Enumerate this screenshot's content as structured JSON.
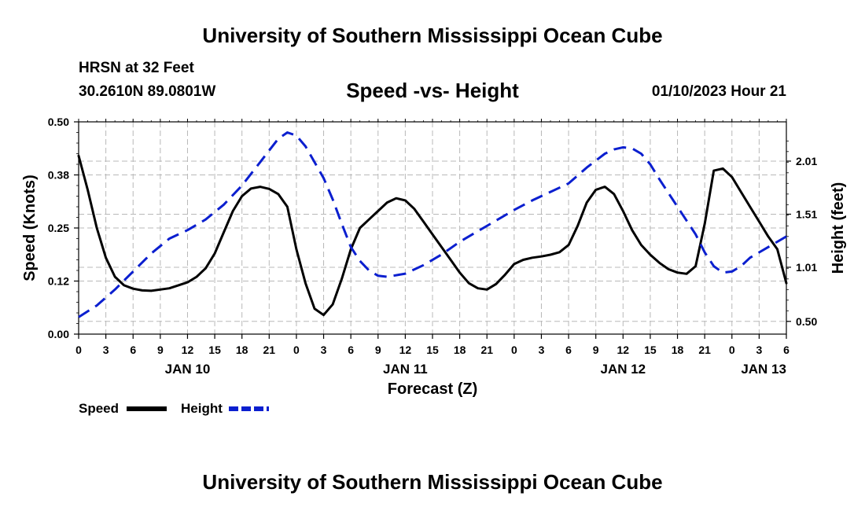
{
  "header": {
    "title_top": "University of Southern Mississippi Ocean Cube",
    "station": "HRSN at 32 Feet",
    "coords": "30.2610N  89.0801W",
    "subtitle": "Speed -vs- Height",
    "datetime": "01/10/2023 Hour 21",
    "title_bottom": "University of Southern Mississippi Ocean Cube"
  },
  "chart_data": {
    "type": "line",
    "title": "Speed -vs- Height",
    "xlabel": "Forecast (Z)",
    "ylabel": "Speed (Knots)",
    "y2label": "Height (feet)",
    "xlim": [
      0,
      78
    ],
    "ylim": [
      0,
      0.5
    ],
    "y2lim": [
      0.38,
      2.38
    ],
    "x_tick_positions": [
      0,
      3,
      6,
      9,
      12,
      15,
      18,
      21,
      24,
      27,
      30,
      33,
      36,
      39,
      42,
      45,
      48,
      51,
      54,
      57,
      60,
      63,
      66,
      69,
      72,
      75,
      78
    ],
    "x_tick_labels": [
      "0",
      "3",
      "6",
      "9",
      "12",
      "15",
      "18",
      "21",
      "0",
      "3",
      "6",
      "9",
      "12",
      "15",
      "18",
      "21",
      "0",
      "3",
      "6",
      "9",
      "12",
      "15",
      "18",
      "21",
      "0",
      "3",
      "6"
    ],
    "date_labels": [
      {
        "x": 12,
        "label": "JAN 10"
      },
      {
        "x": 36,
        "label": "JAN 11"
      },
      {
        "x": 60,
        "label": "JAN 12"
      },
      {
        "x": 75.5,
        "label": "JAN 13"
      }
    ],
    "y_ticks": [
      0.0,
      0.125,
      0.25,
      0.375,
      0.5
    ],
    "y_tick_labels": [
      "0.00",
      "0.12",
      "0.25",
      "0.38",
      "0.50"
    ],
    "y2_ticks": [
      0.5,
      1.01,
      1.51,
      2.01
    ],
    "y2_tick_labels": [
      "0.50",
      "1.01",
      "1.51",
      "2.01"
    ],
    "grid": true,
    "legend": {
      "placement": "bottom-left",
      "entries": [
        "Speed",
        "Height"
      ]
    },
    "series": [
      {
        "name": "Speed",
        "axis": "left",
        "color": "#000000",
        "dash": "solid",
        "points": [
          [
            0,
            0.42
          ],
          [
            1,
            0.34
          ],
          [
            2,
            0.25
          ],
          [
            3,
            0.18
          ],
          [
            4,
            0.135
          ],
          [
            5,
            0.115
          ],
          [
            6,
            0.107
          ],
          [
            7,
            0.103
          ],
          [
            8,
            0.102
          ],
          [
            9,
            0.105
          ],
          [
            10,
            0.108
          ],
          [
            11,
            0.115
          ],
          [
            12,
            0.122
          ],
          [
            13,
            0.135
          ],
          [
            14,
            0.155
          ],
          [
            15,
            0.19
          ],
          [
            16,
            0.24
          ],
          [
            17,
            0.29
          ],
          [
            18,
            0.325
          ],
          [
            19,
            0.343
          ],
          [
            20,
            0.347
          ],
          [
            21,
            0.342
          ],
          [
            22,
            0.33
          ],
          [
            23,
            0.3
          ],
          [
            24,
            0.2
          ],
          [
            25,
            0.12
          ],
          [
            26,
            0.06
          ],
          [
            27,
            0.045
          ],
          [
            28,
            0.07
          ],
          [
            29,
            0.13
          ],
          [
            30,
            0.2
          ],
          [
            31,
            0.25
          ],
          [
            32,
            0.27
          ],
          [
            33,
            0.29
          ],
          [
            34,
            0.31
          ],
          [
            35,
            0.32
          ],
          [
            36,
            0.315
          ],
          [
            37,
            0.295
          ],
          [
            38,
            0.265
          ],
          [
            39,
            0.235
          ],
          [
            40,
            0.205
          ],
          [
            41,
            0.175
          ],
          [
            42,
            0.145
          ],
          [
            43,
            0.12
          ],
          [
            44,
            0.108
          ],
          [
            45,
            0.105
          ],
          [
            46,
            0.118
          ],
          [
            47,
            0.14
          ],
          [
            48,
            0.165
          ],
          [
            49,
            0.175
          ],
          [
            50,
            0.18
          ],
          [
            51,
            0.183
          ],
          [
            52,
            0.187
          ],
          [
            53,
            0.193
          ],
          [
            54,
            0.21
          ],
          [
            55,
            0.255
          ],
          [
            56,
            0.31
          ],
          [
            57,
            0.34
          ],
          [
            58,
            0.347
          ],
          [
            59,
            0.33
          ],
          [
            60,
            0.29
          ],
          [
            61,
            0.245
          ],
          [
            62,
            0.21
          ],
          [
            63,
            0.187
          ],
          [
            64,
            0.168
          ],
          [
            65,
            0.153
          ],
          [
            66,
            0.145
          ],
          [
            67,
            0.142
          ],
          [
            68,
            0.16
          ],
          [
            69,
            0.26
          ],
          [
            70,
            0.385
          ],
          [
            71,
            0.39
          ],
          [
            72,
            0.37
          ],
          [
            73,
            0.335
          ],
          [
            74,
            0.3
          ],
          [
            75,
            0.265
          ],
          [
            76,
            0.23
          ],
          [
            77,
            0.2
          ],
          [
            78,
            0.12
          ]
        ]
      },
      {
        "name": "Height",
        "axis": "right",
        "color": "#0b1fcf",
        "dash": "dashed",
        "points": [
          [
            0,
            0.54
          ],
          [
            2,
            0.65
          ],
          [
            4,
            0.8
          ],
          [
            6,
            0.97
          ],
          [
            8,
            1.14
          ],
          [
            10,
            1.28
          ],
          [
            12,
            1.36
          ],
          [
            14,
            1.46
          ],
          [
            16,
            1.6
          ],
          [
            18,
            1.78
          ],
          [
            20,
            2.0
          ],
          [
            22,
            2.22
          ],
          [
            23,
            2.28
          ],
          [
            24,
            2.25
          ],
          [
            25,
            2.15
          ],
          [
            26,
            2.0
          ],
          [
            27,
            1.85
          ],
          [
            28,
            1.65
          ],
          [
            29,
            1.42
          ],
          [
            30,
            1.2
          ],
          [
            31,
            1.07
          ],
          [
            32,
            0.98
          ],
          [
            33,
            0.93
          ],
          [
            34,
            0.92
          ],
          [
            36,
            0.95
          ],
          [
            38,
            1.03
          ],
          [
            40,
            1.13
          ],
          [
            42,
            1.25
          ],
          [
            44,
            1.35
          ],
          [
            46,
            1.45
          ],
          [
            48,
            1.55
          ],
          [
            50,
            1.64
          ],
          [
            52,
            1.72
          ],
          [
            54,
            1.8
          ],
          [
            56,
            1.95
          ],
          [
            58,
            2.08
          ],
          [
            59,
            2.12
          ],
          [
            60,
            2.14
          ],
          [
            61,
            2.13
          ],
          [
            62,
            2.08
          ],
          [
            63,
            1.98
          ],
          [
            64,
            1.84
          ],
          [
            66,
            1.58
          ],
          [
            68,
            1.32
          ],
          [
            69,
            1.15
          ],
          [
            70,
            1.02
          ],
          [
            71,
            0.96
          ],
          [
            72,
            0.97
          ],
          [
            73,
            1.02
          ],
          [
            74,
            1.1
          ],
          [
            76,
            1.2
          ],
          [
            78,
            1.3
          ]
        ]
      }
    ]
  }
}
